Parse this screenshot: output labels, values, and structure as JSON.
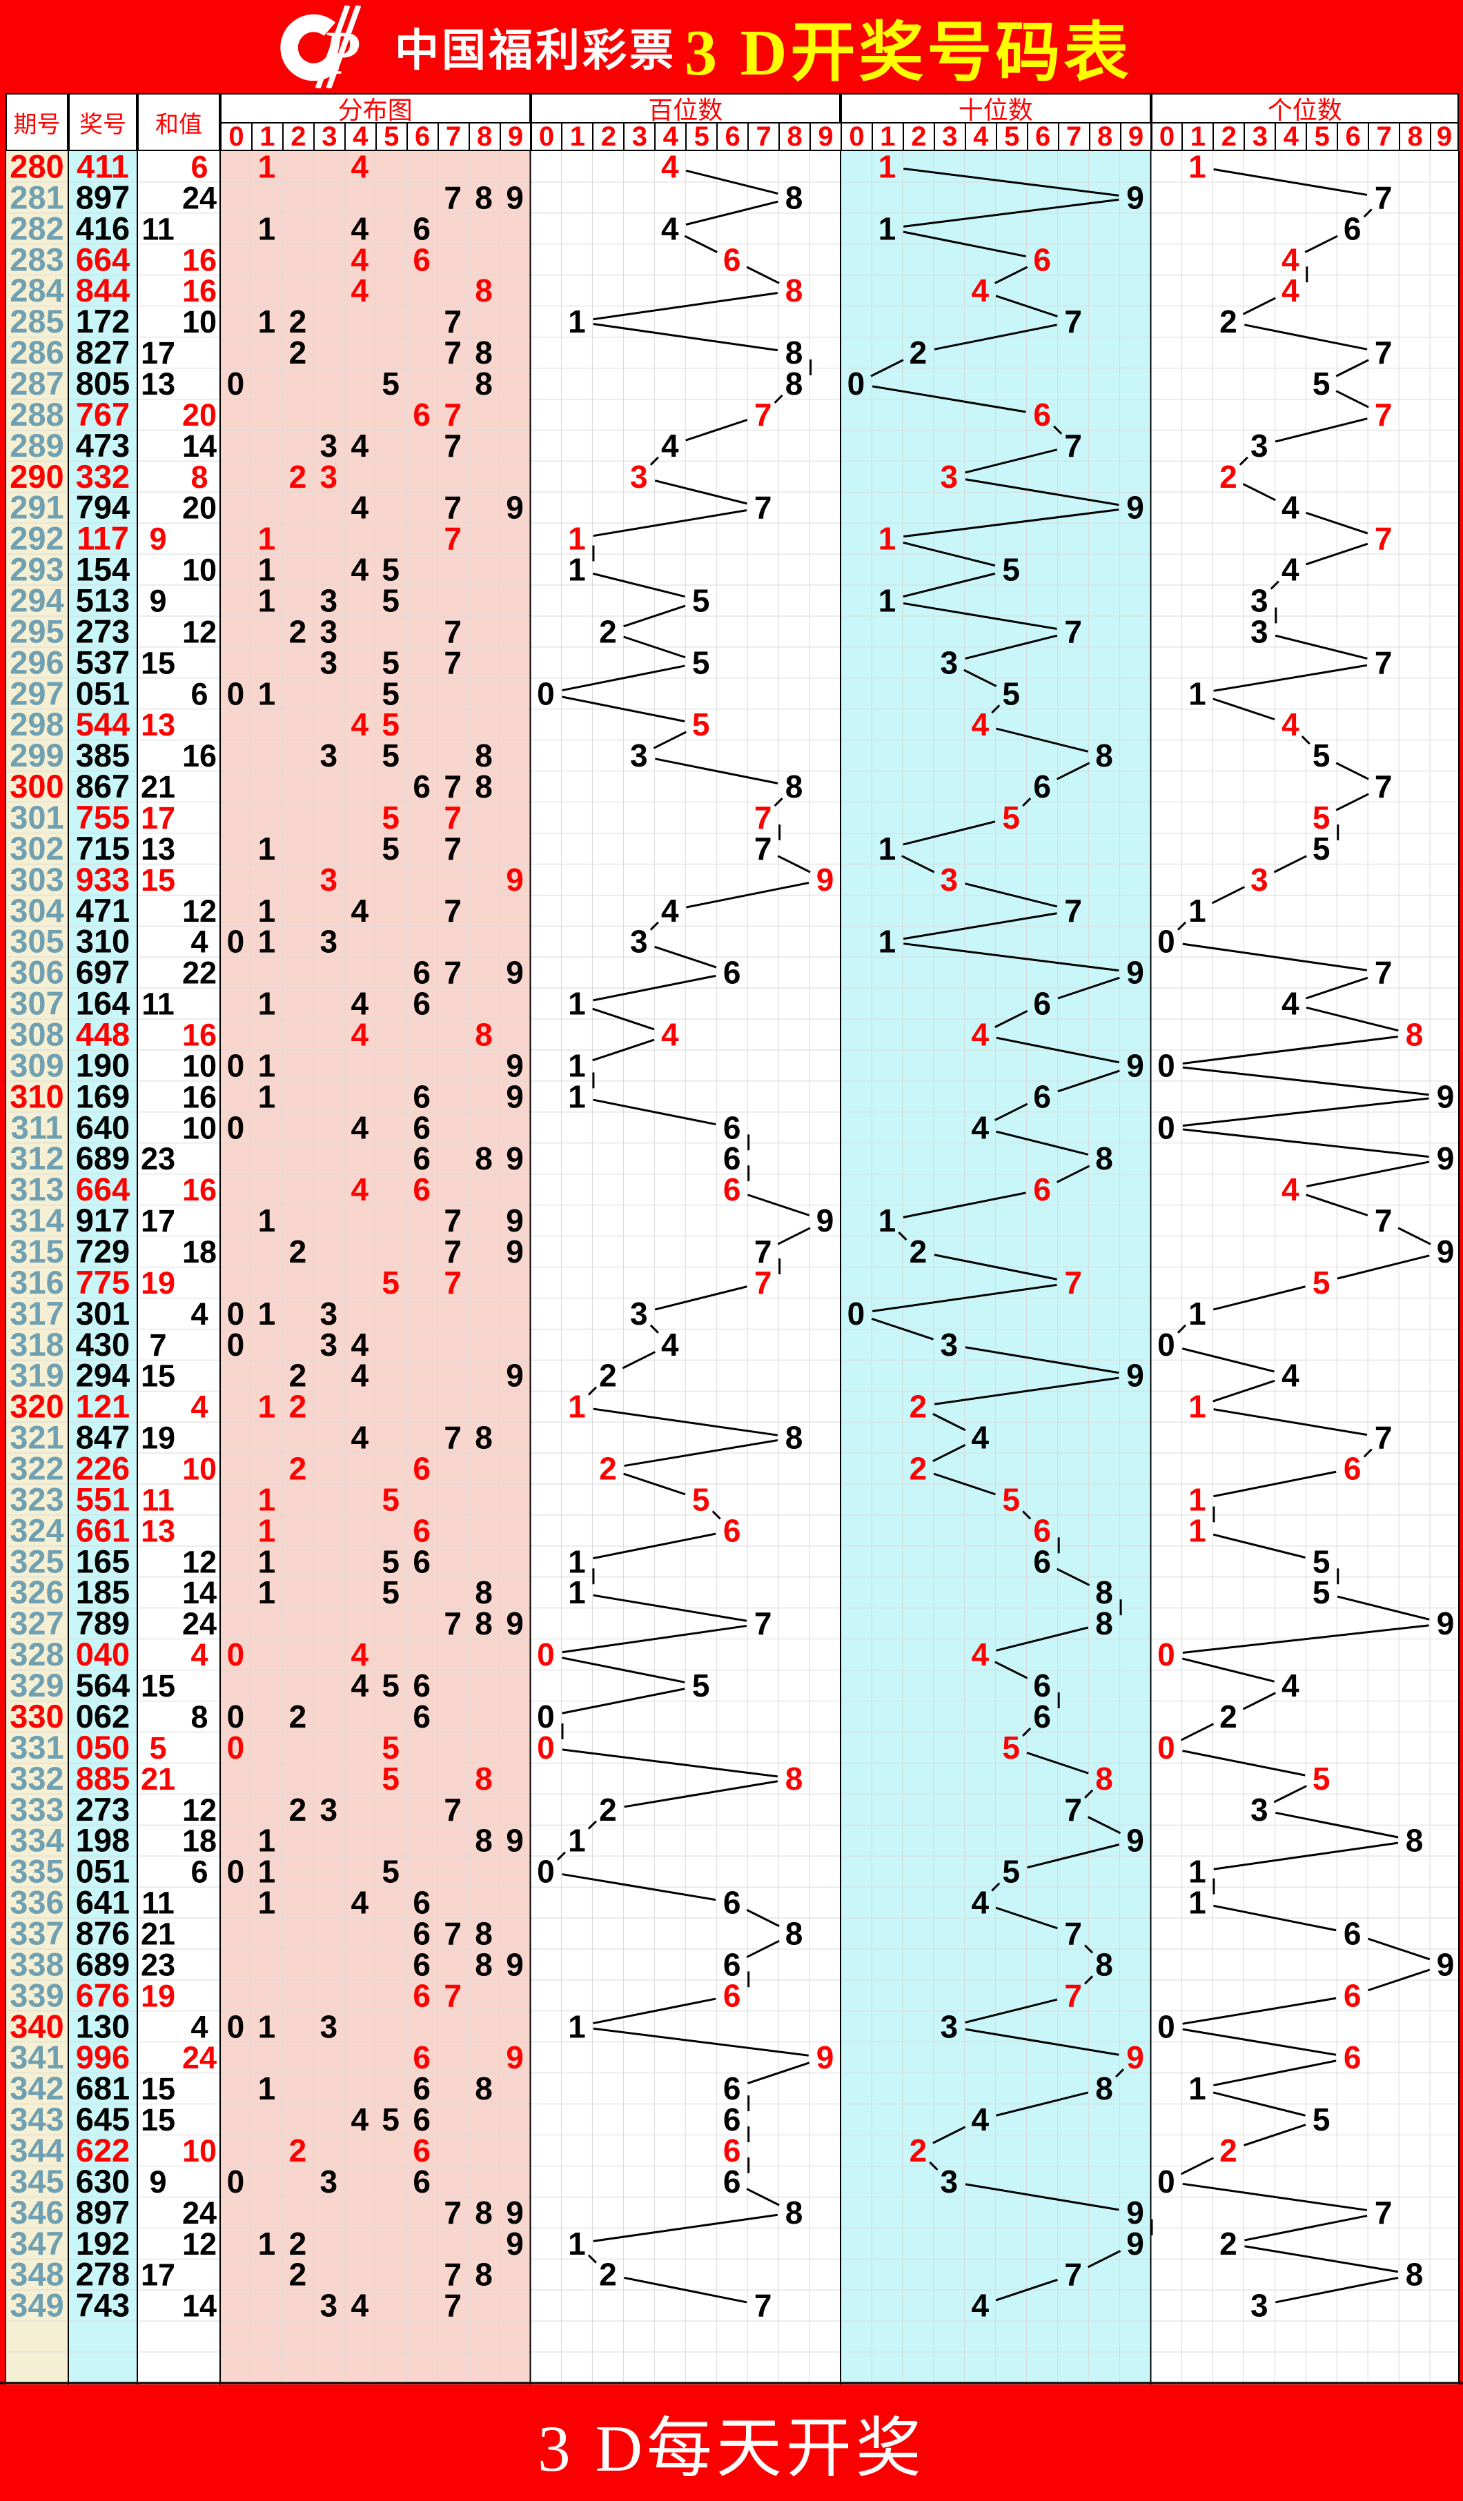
{
  "banner": {
    "logo_icon": "china-welfare-lottery-logo",
    "logo_text": "中国福利彩票",
    "title": "3 D开奖号码表"
  },
  "header": {
    "period_label": "期号",
    "number_label": "奖号",
    "sum_label": "和值",
    "sections": [
      {
        "label": "分布图"
      },
      {
        "label": "百位数"
      },
      {
        "label": "十位数"
      },
      {
        "label": "个位数"
      }
    ],
    "digits": [
      "0",
      "1",
      "2",
      "3",
      "4",
      "5",
      "6",
      "7",
      "8",
      "9"
    ]
  },
  "footer": {
    "text": "3 D每天开奖"
  },
  "colors": {
    "banner_bg": "#FB0000",
    "title_yellow": "#FFFF00",
    "logo_white": "#FFFFFF",
    "header_red": "#FF0000",
    "period_text": "#6FA0B2",
    "period_highlight": "#FF0000",
    "mark_black": "#000000",
    "mark_red": "#FF0000",
    "bg_period": "#F5EFD3",
    "bg_number": "#C9F6F8",
    "bg_dist": "#F8D6CD",
    "bg_tens": "#C9F6F8",
    "grid": "#D9D9D9",
    "border": "#000000",
    "line": "#000000"
  },
  "chart_data": {
    "type": "table",
    "title": "3 D开奖号码表",
    "panels": [
      {
        "label": "分布图",
        "kind": "digit-distribution",
        "x_range": [
          0,
          9
        ]
      },
      {
        "label": "百位数",
        "kind": "line",
        "digit_index": 0,
        "x_range": [
          0,
          9
        ]
      },
      {
        "label": "十位数",
        "kind": "line",
        "digit_index": 1,
        "x_range": [
          0,
          9
        ]
      },
      {
        "label": "个位数",
        "kind": "line",
        "digit_index": 2,
        "x_range": [
          0,
          9
        ]
      }
    ],
    "row_format": [
      "period",
      "number",
      "sum"
    ],
    "rows": [
      [
        280,
        "411",
        6
      ],
      [
        281,
        "897",
        24
      ],
      [
        282,
        "416",
        11
      ],
      [
        283,
        "664",
        16
      ],
      [
        284,
        "844",
        16
      ],
      [
        285,
        "172",
        10
      ],
      [
        286,
        "827",
        17
      ],
      [
        287,
        "805",
        13
      ],
      [
        288,
        "767",
        20
      ],
      [
        289,
        "473",
        14
      ],
      [
        290,
        "332",
        8
      ],
      [
        291,
        "794",
        20
      ],
      [
        292,
        "117",
        9
      ],
      [
        293,
        "154",
        10
      ],
      [
        294,
        "513",
        9
      ],
      [
        295,
        "273",
        12
      ],
      [
        296,
        "537",
        15
      ],
      [
        297,
        "051",
        6
      ],
      [
        298,
        "544",
        13
      ],
      [
        299,
        "385",
        16
      ],
      [
        300,
        "867",
        21
      ],
      [
        301,
        "755",
        17
      ],
      [
        302,
        "715",
        13
      ],
      [
        303,
        "933",
        15
      ],
      [
        304,
        "471",
        12
      ],
      [
        305,
        "310",
        4
      ],
      [
        306,
        "697",
        22
      ],
      [
        307,
        "164",
        11
      ],
      [
        308,
        "448",
        16
      ],
      [
        309,
        "190",
        10
      ],
      [
        310,
        "169",
        16
      ],
      [
        311,
        "640",
        10
      ],
      [
        312,
        "689",
        23
      ],
      [
        313,
        "664",
        16
      ],
      [
        314,
        "917",
        17
      ],
      [
        315,
        "729",
        18
      ],
      [
        316,
        "775",
        19
      ],
      [
        317,
        "301",
        4
      ],
      [
        318,
        "430",
        7
      ],
      [
        319,
        "294",
        15
      ],
      [
        320,
        "121",
        4
      ],
      [
        321,
        "847",
        19
      ],
      [
        322,
        "226",
        10
      ],
      [
        323,
        "551",
        11
      ],
      [
        324,
        "661",
        13
      ],
      [
        325,
        "165",
        12
      ],
      [
        326,
        "185",
        14
      ],
      [
        327,
        "789",
        24
      ],
      [
        328,
        "040",
        4
      ],
      [
        329,
        "564",
        15
      ],
      [
        330,
        "062",
        8
      ],
      [
        331,
        "050",
        5
      ],
      [
        332,
        "885",
        21
      ],
      [
        333,
        "273",
        12
      ],
      [
        334,
        "198",
        18
      ],
      [
        335,
        "051",
        6
      ],
      [
        336,
        "641",
        11
      ],
      [
        337,
        "876",
        21
      ],
      [
        338,
        "689",
        23
      ],
      [
        339,
        "676",
        19
      ],
      [
        340,
        "130",
        4
      ],
      [
        341,
        "996",
        24
      ],
      [
        342,
        "681",
        15
      ],
      [
        343,
        "645",
        15
      ],
      [
        344,
        "622",
        10
      ],
      [
        345,
        "630",
        9
      ],
      [
        346,
        "897",
        24
      ],
      [
        347,
        "192",
        12
      ],
      [
        348,
        "278",
        17
      ],
      [
        349,
        "743",
        14
      ]
    ]
  }
}
